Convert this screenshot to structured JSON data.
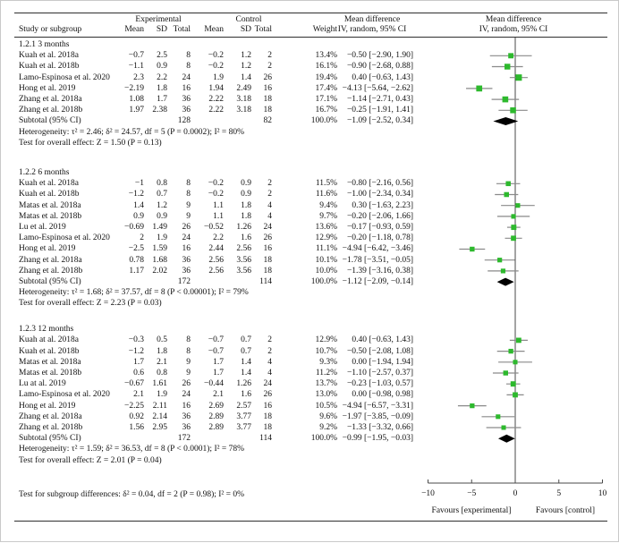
{
  "colors": {
    "marker_green": "#2db92d",
    "ci_line": "#8a8a8a",
    "diamond": "#000000",
    "axis_line": "#4a4a4a",
    "rule": "#2f2f2f",
    "text": "#111111"
  },
  "chart_data": {
    "type": "forest",
    "header": {
      "group_experimental": "Experimental",
      "group_control": "Control",
      "study": "Study or subgroup",
      "mean": "Mean",
      "sd": "SD",
      "total": "Total",
      "weight": "Weight",
      "md_text_line1": "Mean difference",
      "md_text_line2": "IV, random, 95% CI",
      "md_plot_line1": "Mean difference",
      "md_plot_line2": "IV, random, 95% CI"
    },
    "axis": {
      "xlim": [
        -10,
        10
      ],
      "ticks": [
        "−10",
        "−5",
        "0",
        "5",
        "10"
      ],
      "tick_values": [
        -10,
        -5,
        0,
        5,
        10
      ],
      "favours_left": "Favours [experimental]",
      "favours_right": "Favours [control]"
    },
    "footer": "Test for subgroup differences:  δ² = 0.04, df = 2 (P = 0.98); I² = 0%",
    "groups": [
      {
        "label": "1.2.1 3 months",
        "studies": [
          {
            "name": "Kuah et al. 2018a",
            "e_mean": "−0.7",
            "e_sd": "2.5",
            "e_total": "8",
            "c_mean": "−0.2",
            "c_sd": "1.2",
            "c_total": "2",
            "weight": "13.4%",
            "md_label": "−0.50 [−2.90, 1.90]",
            "est": -0.5,
            "lo": -2.9,
            "hi": 1.9,
            "w": 13.4
          },
          {
            "name": "Kuah et al. 2018b",
            "e_mean": "−1.1",
            "e_sd": "0.9",
            "e_total": "8",
            "c_mean": "−0.2",
            "c_sd": "1.2",
            "c_total": "2",
            "weight": "16.1%",
            "md_label": "−0.90 [−2.68, 0.88]",
            "est": -0.9,
            "lo": -2.68,
            "hi": 0.88,
            "w": 16.1
          },
          {
            "name": "Lamo-Espinosa et al. 2020",
            "e_mean": "2.3",
            "e_sd": "2.2",
            "e_total": "24",
            "c_mean": "1.9",
            "c_sd": "1.4",
            "c_total": "26",
            "weight": "19.4%",
            "md_label": "0.40 [−0.63, 1.43]",
            "est": 0.4,
            "lo": -0.63,
            "hi": 1.43,
            "w": 19.4
          },
          {
            "name": "Hong et al. 2019",
            "e_mean": "−2.19",
            "e_sd": "1.8",
            "e_total": "16",
            "c_mean": "1.94",
            "c_sd": "2.49",
            "c_total": "16",
            "weight": "17.4%",
            "md_label": "−4.13 [−5.64, −2.62]",
            "est": -4.13,
            "lo": -5.64,
            "hi": -2.62,
            "w": 17.4
          },
          {
            "name": "Zhang et al. 2018a",
            "e_mean": "1.08",
            "e_sd": "1.7",
            "e_total": "36",
            "c_mean": "2.22",
            "c_sd": "3.18",
            "c_total": "18",
            "weight": "17.1%",
            "md_label": "−1.14 [−2.71, 0.43]",
            "est": -1.14,
            "lo": -2.71,
            "hi": 0.43,
            "w": 17.1
          },
          {
            "name": "Zhang et al. 2018b",
            "e_mean": "1.97",
            "e_sd": "2.38",
            "e_total": "36",
            "c_mean": "2.22",
            "c_sd": "3.18",
            "c_total": "18",
            "weight": "16.7%",
            "md_label": "−0.25 [−1.91, 1.41]",
            "est": -0.25,
            "lo": -1.91,
            "hi": 1.41,
            "w": 16.7
          }
        ],
        "subtotal": {
          "name": "Subtotal (95% CI)",
          "e_total": "128",
          "c_total": "82",
          "weight": "100.0%",
          "md_label": "−1.09 [−2.52, 0.34]",
          "est": -1.09,
          "lo": -2.52,
          "hi": 0.34
        },
        "heterogeneity": "Heterogeneity: τ² = 2.46; δ² = 24.57, df = 5 (P = 0.0002); I² = 80%",
        "overall_effect": "Test for overall effect:  Z = 1.50 (P = 0.13)"
      },
      {
        "label": "1.2.2 6 months",
        "studies": [
          {
            "name": "Kuah et al. 2018a",
            "e_mean": "−1",
            "e_sd": "0.8",
            "e_total": "8",
            "c_mean": "−0.2",
            "c_sd": "0.9",
            "c_total": "2",
            "weight": "11.5%",
            "md_label": "−0.80 [−2.16, 0.56]",
            "est": -0.8,
            "lo": -2.16,
            "hi": 0.56,
            "w": 11.5
          },
          {
            "name": "Kuah et al. 2018b",
            "e_mean": "−1.2",
            "e_sd": "0.7",
            "e_total": "8",
            "c_mean": "−0.2",
            "c_sd": "0.9",
            "c_total": "2",
            "weight": "11.6%",
            "md_label": "−1.00 [−2.34, 0.34]",
            "est": -1.0,
            "lo": -2.34,
            "hi": 0.34,
            "w": 11.6
          },
          {
            "name": "Matas et al. 2018a",
            "e_mean": "1.4",
            "e_sd": "1.2",
            "e_total": "9",
            "c_mean": "1.1",
            "c_sd": "1.8",
            "c_total": "4",
            "weight": "9.4%",
            "md_label": "0.30 [−1.63, 2.23]",
            "est": 0.3,
            "lo": -1.63,
            "hi": 2.23,
            "w": 9.4
          },
          {
            "name": "Matas et al. 2018b",
            "e_mean": "0.9",
            "e_sd": "0.9",
            "e_total": "9",
            "c_mean": "1.1",
            "c_sd": "1.8",
            "c_total": "4",
            "weight": "9.7%",
            "md_label": "−0.20 [−2.06, 1.66]",
            "est": -0.2,
            "lo": -2.06,
            "hi": 1.66,
            "w": 9.7
          },
          {
            "name": "Lu et al. 2019",
            "e_mean": "−0.69",
            "e_sd": "1.49",
            "e_total": "26",
            "c_mean": "−0.52",
            "c_sd": "1.26",
            "c_total": "24",
            "weight": "13.6%",
            "md_label": "−0.17 [−0.93, 0.59]",
            "est": -0.17,
            "lo": -0.93,
            "hi": 0.59,
            "w": 13.6
          },
          {
            "name": "Lamo-Espinosa et al. 2020",
            "e_mean": "2",
            "e_sd": "1.9",
            "e_total": "24",
            "c_mean": "2.2",
            "c_sd": "1.6",
            "c_total": "26",
            "weight": "12.9%",
            "md_label": "−0.20 [−1.18, 0.78]",
            "est": -0.2,
            "lo": -1.18,
            "hi": 0.78,
            "w": 12.9
          },
          {
            "name": "Hong et al. 2019",
            "e_mean": "−2.5",
            "e_sd": "1.59",
            "e_total": "16",
            "c_mean": "2.44",
            "c_sd": "2.56",
            "c_total": "16",
            "weight": "11.1%",
            "md_label": "−4.94 [−6.42, −3.46]",
            "est": -4.94,
            "lo": -6.42,
            "hi": -3.46,
            "w": 11.1
          },
          {
            "name": "Zhang et al. 2018a",
            "e_mean": "0.78",
            "e_sd": "1.68",
            "e_total": "36",
            "c_mean": "2.56",
            "c_sd": "3.56",
            "c_total": "18",
            "weight": "10.1%",
            "md_label": "−1.78 [−3.51, −0.05]",
            "est": -1.78,
            "lo": -3.51,
            "hi": -0.05,
            "w": 10.1
          },
          {
            "name": "Zhang et al. 2018b",
            "e_mean": "1.17",
            "e_sd": "2.02",
            "e_total": "36",
            "c_mean": "2.56",
            "c_sd": "3.56",
            "c_total": "18",
            "weight": "10.0%",
            "md_label": "−1.39 [−3.16, 0.38]",
            "est": -1.39,
            "lo": -3.16,
            "hi": 0.38,
            "w": 10.0
          }
        ],
        "subtotal": {
          "name": "Subtotal (95% CI)",
          "e_total": "172",
          "c_total": "114",
          "weight": "100.0%",
          "md_label": "−1.12 [−2.09, −0.14]",
          "est": -1.12,
          "lo": -2.09,
          "hi": -0.14
        },
        "heterogeneity": "Heterogeneity: τ² = 1.68; δ² = 37.57, df = 8 (P < 0.00001); I² = 79%",
        "overall_effect": "Test for overall effect:  Z = 2.23 (P = 0.03)"
      },
      {
        "label": "1.2.3 12 months",
        "studies": [
          {
            "name": "Kuah at al. 2018a",
            "e_mean": "−0.3",
            "e_sd": "0.5",
            "e_total": "8",
            "c_mean": "−0.7",
            "c_sd": "0.7",
            "c_total": "2",
            "weight": "12.9%",
            "md_label": "0.40 [−0.63, 1.43]",
            "est": 0.4,
            "lo": -0.63,
            "hi": 1.43,
            "w": 12.9
          },
          {
            "name": "Kuah et al. 2018b",
            "e_mean": "−1.2",
            "e_sd": "1.8",
            "e_total": "8",
            "c_mean": "−0.7",
            "c_sd": "0.7",
            "c_total": "2",
            "weight": "10.7%",
            "md_label": "−0.50 [−2.08, 1.08]",
            "est": -0.5,
            "lo": -2.08,
            "hi": 1.08,
            "w": 10.7
          },
          {
            "name": "Matas et al. 2018a",
            "e_mean": "1.7",
            "e_sd": "2.1",
            "e_total": "9",
            "c_mean": "1.7",
            "c_sd": "1.4",
            "c_total": "4",
            "weight": "9.3%",
            "md_label": "0.00 [−1.94, 1.94]",
            "est": 0.0,
            "lo": -1.94,
            "hi": 1.94,
            "w": 9.3
          },
          {
            "name": "Matas et al. 2018b",
            "e_mean": "0.6",
            "e_sd": "0.8",
            "e_total": "9",
            "c_mean": "1.7",
            "c_sd": "1.4",
            "c_total": "4",
            "weight": "11.2%",
            "md_label": "−1.10 [−2.57, 0.37]",
            "est": -1.1,
            "lo": -2.57,
            "hi": 0.37,
            "w": 11.2
          },
          {
            "name": "Lu at al. 2019",
            "e_mean": "−0.67",
            "e_sd": "1.61",
            "e_total": "26",
            "c_mean": "−0.44",
            "c_sd": "1.26",
            "c_total": "24",
            "weight": "13.7%",
            "md_label": "−0.23 [−1.03, 0.57]",
            "est": -0.23,
            "lo": -1.03,
            "hi": 0.57,
            "w": 13.7
          },
          {
            "name": "Lamo-Espinosa et al. 2020",
            "e_mean": "2.1",
            "e_sd": "1.9",
            "e_total": "24",
            "c_mean": "2.1",
            "c_sd": "1.6",
            "c_total": "26",
            "weight": "13.0%",
            "md_label": "0.00 [−0.98, 0.98]",
            "est": 0.0,
            "lo": -0.98,
            "hi": 0.98,
            "w": 13.0
          },
          {
            "name": "Hong et al. 2019",
            "e_mean": "−2.25",
            "e_sd": "2.11",
            "e_total": "16",
            "c_mean": "2.69",
            "c_sd": "2.57",
            "c_total": "16",
            "weight": "10.5%",
            "md_label": "−4.94 [−6.57, −3.31]",
            "est": -4.94,
            "lo": -6.57,
            "hi": -3.31,
            "w": 10.5
          },
          {
            "name": "Zhang et al. 2018a",
            "e_mean": "0.92",
            "e_sd": "2.14",
            "e_total": "36",
            "c_mean": "2.89",
            "c_sd": "3.77",
            "c_total": "18",
            "weight": "9.6%",
            "md_label": "−1.97 [−3.85, −0.09]",
            "est": -1.97,
            "lo": -3.85,
            "hi": -0.09,
            "w": 9.6
          },
          {
            "name": "Zhang et al. 2018b",
            "e_mean": "1.56",
            "e_sd": "2.95",
            "e_total": "36",
            "c_mean": "2.89",
            "c_sd": "3.77",
            "c_total": "18",
            "weight": "9.2%",
            "md_label": "−1.33 [−3.32, 0.66]",
            "est": -1.33,
            "lo": -3.32,
            "hi": 0.66,
            "w": 9.2
          }
        ],
        "subtotal": {
          "name": "Subtotal (95% CI)",
          "e_total": "172",
          "c_total": "114",
          "weight": "100.0%",
          "md_label": "−0.99 [−1.95, −0.03]",
          "est": -0.99,
          "lo": -1.95,
          "hi": -0.03
        },
        "heterogeneity": "Heterogeneity: τ² = 1.59; δ² = 36.53, df = 8 (P < 0.0001); I² = 78%",
        "overall_effect": "Test for overall effect:  Z = 2.01 (P = 0.04)"
      }
    ]
  }
}
